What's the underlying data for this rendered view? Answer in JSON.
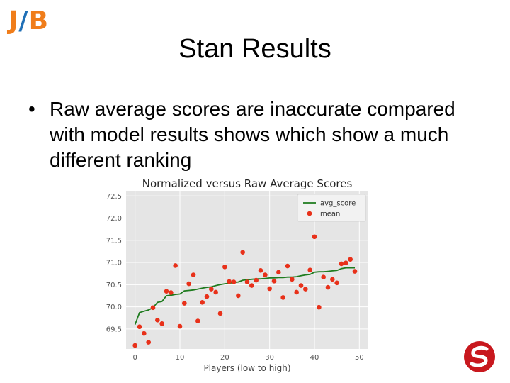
{
  "logo": {
    "left": "J",
    "sep": "/",
    "right": "B"
  },
  "slide": {
    "title": "Stan Results",
    "bullets": [
      "Raw average scores are inaccurate compared with model results shows which show a much different ranking"
    ]
  },
  "chart_data": {
    "type": "line",
    "title": "Normalized versus Raw Average Scores",
    "xlabel": "Players (low to high)",
    "ylabel": "",
    "xlim": [
      -2,
      52
    ],
    "ylim": [
      69.05,
      72.6
    ],
    "xticks": [
      0,
      10,
      20,
      30,
      40,
      50
    ],
    "yticks": [
      69.5,
      70.0,
      70.5,
      71.0,
      71.5,
      72.0,
      72.5
    ],
    "grid": true,
    "legend_position": "top-right",
    "series": [
      {
        "name": "avg_score",
        "kind": "line",
        "color": "#1e7b1e",
        "x": [
          0,
          1,
          2,
          3,
          4,
          5,
          6,
          7,
          8,
          9,
          10,
          11,
          12,
          13,
          14,
          15,
          16,
          17,
          18,
          19,
          20,
          21,
          22,
          23,
          24,
          25,
          26,
          27,
          28,
          29,
          30,
          31,
          32,
          33,
          34,
          35,
          36,
          37,
          38,
          39,
          40,
          41,
          42,
          43,
          44,
          45,
          46,
          47,
          48,
          49
        ],
        "y": [
          69.6,
          69.87,
          69.9,
          69.93,
          69.98,
          70.1,
          70.12,
          70.25,
          70.26,
          70.28,
          70.29,
          70.36,
          70.37,
          70.38,
          70.4,
          70.42,
          70.44,
          70.45,
          70.48,
          70.5,
          70.52,
          70.53,
          70.55,
          70.56,
          70.6,
          70.61,
          70.62,
          70.63,
          70.63,
          70.64,
          70.65,
          70.65,
          70.66,
          70.66,
          70.67,
          70.67,
          70.68,
          70.7,
          70.72,
          70.73,
          70.78,
          70.79,
          70.79,
          70.8,
          70.81,
          70.82,
          70.86,
          70.88,
          70.88,
          70.88
        ]
      },
      {
        "name": "mean",
        "kind": "scatter",
        "color": "#e8311a",
        "x": [
          0,
          1,
          2,
          3,
          4,
          5,
          6,
          7,
          8,
          9,
          10,
          11,
          12,
          13,
          14,
          15,
          16,
          17,
          18,
          19,
          20,
          21,
          22,
          23,
          24,
          25,
          26,
          27,
          28,
          29,
          30,
          31,
          32,
          33,
          34,
          35,
          36,
          37,
          38,
          39,
          40,
          41,
          42,
          43,
          44,
          45,
          46,
          47,
          48,
          49
        ],
        "y": [
          69.13,
          69.55,
          69.4,
          69.2,
          69.98,
          69.7,
          69.62,
          70.35,
          70.32,
          70.93,
          69.56,
          70.08,
          70.52,
          70.72,
          69.68,
          70.1,
          70.23,
          70.4,
          70.33,
          69.85,
          70.9,
          70.57,
          70.56,
          70.25,
          71.23,
          70.56,
          70.48,
          70.6,
          70.82,
          70.72,
          70.41,
          70.58,
          70.78,
          70.21,
          70.92,
          70.62,
          70.33,
          70.48,
          70.4,
          70.83,
          71.58,
          69.99,
          70.67,
          70.44,
          70.62,
          70.54,
          70.97,
          70.99,
          71.07,
          70.8
        ]
      }
    ]
  }
}
